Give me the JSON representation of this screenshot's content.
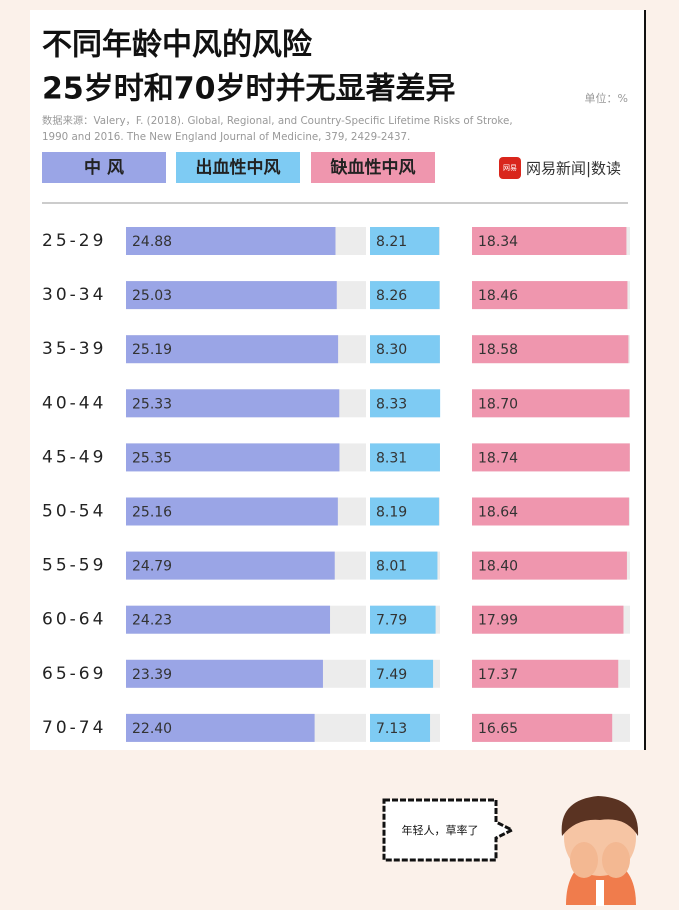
{
  "chart_data": {
    "type": "bar",
    "orientation": "horizontal",
    "title": [
      "不同年龄中风的风险",
      "25岁时和70岁时并无显著差异"
    ],
    "unit": "单位：%",
    "source": [
      "数据来源：Valery，F. (2018). Global, Regional, and Country-Specific Lifetime Risks of Stroke,",
      "1990 and 2016. The New England Journal of Medicine, 379, 2429-2437."
    ],
    "brand_icon": "网易",
    "brand": "网易新闻|数读",
    "categories": [
      "25-29",
      "30-34",
      "35-39",
      "40-44",
      "45-49",
      "50-54",
      "55-59",
      "60-64",
      "65-69",
      "70-74"
    ],
    "series": [
      {
        "name": "中 风",
        "color": "#9aa5e6",
        "values": [
          24.88,
          25.03,
          25.19,
          25.33,
          25.35,
          25.16,
          24.79,
          24.23,
          23.39,
          22.4
        ],
        "value_labels": [
          "24.88",
          "25.03",
          "25.19",
          "25.33",
          "25.35",
          "25.16",
          "24.79",
          "24.23",
          "23.39",
          "22.40"
        ]
      },
      {
        "name": "出血性中风",
        "color": "#7ecbf3",
        "values": [
          8.21,
          8.26,
          8.3,
          8.33,
          8.31,
          8.19,
          8.01,
          7.79,
          7.49,
          7.13
        ],
        "value_labels": [
          "8.21",
          "8.26",
          "8.30",
          "8.33",
          "8.31",
          "8.19",
          "8.01",
          "7.79",
          "7.49",
          "7.13"
        ]
      },
      {
        "name": "缺血性中风",
        "color": "#ef96ae",
        "values": [
          18.34,
          18.46,
          18.58,
          18.7,
          18.74,
          18.64,
          18.4,
          17.99,
          17.37,
          16.65
        ],
        "value_labels": [
          "18.34",
          "18.46",
          "18.58",
          "18.70",
          "18.74",
          "18.64",
          "18.40",
          "17.99",
          "17.37",
          "16.65"
        ]
      }
    ]
  },
  "bubble": {
    "text": "年轻人，草率了"
  }
}
